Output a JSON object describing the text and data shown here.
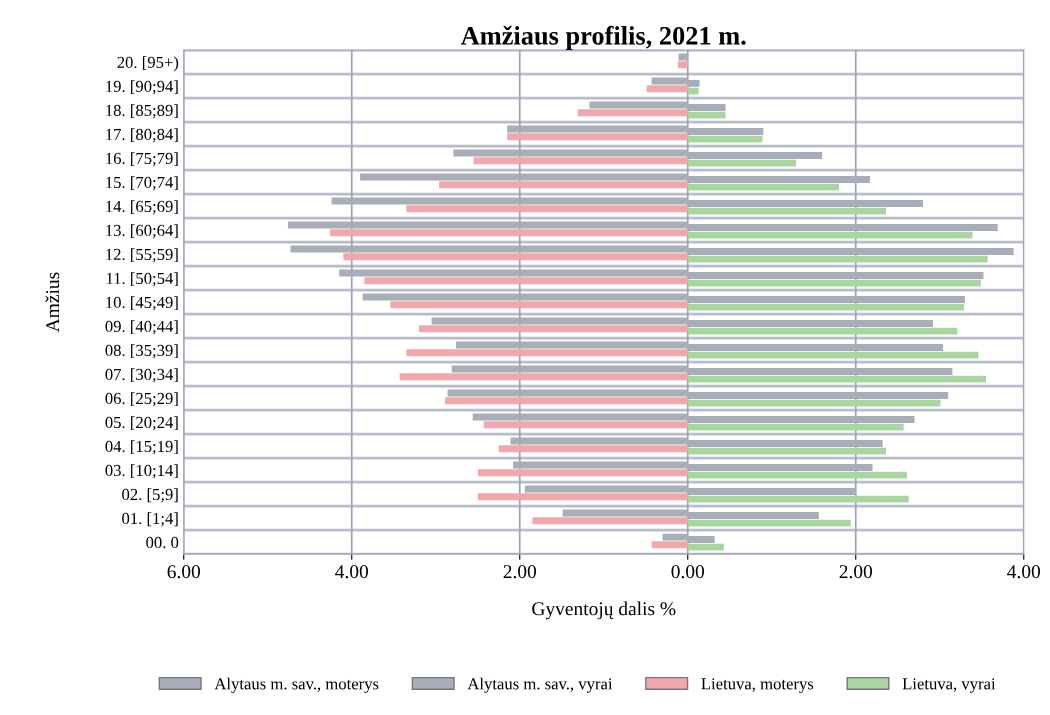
{
  "chart_data": {
    "type": "bar",
    "orientation": "horizontal",
    "title": "Amžiaus profilis, 2021 m.",
    "xlabel": "Gyventojų dalis %",
    "ylabel": "Amžius",
    "categories": [
      "20. [95+)",
      "19. [90;94]",
      "18. [85;89]",
      "17. [80;84]",
      "16. [75;79]",
      "15. [70;74]",
      "14. [65;69]",
      "13. [60;64]",
      "12. [55;59]",
      "11. [50;54]",
      "10. [45;49]",
      "09. [40;44]",
      "08. [35;39]",
      "07. [30;34]",
      "06. [25;29]",
      "05. [20;24]",
      "04. [15;19]",
      "03. [10;14]",
      "02. [5;9]",
      "01. [1;4]",
      "00. 0"
    ],
    "series": [
      {
        "name": "Alytaus m. sav., moterys",
        "color": "#a9adb9",
        "values": [
          -0.11,
          -0.43,
          -1.17,
          -2.15,
          -2.79,
          -3.9,
          -4.24,
          -4.76,
          -4.73,
          -4.15,
          -3.87,
          -3.05,
          -2.76,
          -2.81,
          -2.86,
          -2.56,
          -2.11,
          -2.08,
          -1.94,
          -1.49,
          -0.3
        ]
      },
      {
        "name": "Alytaus m. sav., vyrai",
        "color": "#a9adb9",
        "values": [
          null,
          0.14,
          0.45,
          0.9,
          1.6,
          2.17,
          2.8,
          3.69,
          3.88,
          3.52,
          3.3,
          2.92,
          3.04,
          3.15,
          3.1,
          2.7,
          2.32,
          2.2,
          2.0,
          1.56,
          0.32
        ]
      },
      {
        "name": "Lietuva, moterys",
        "color": "#f2a7ac",
        "values": [
          -0.12,
          -0.49,
          -1.31,
          -2.15,
          -2.55,
          -2.96,
          -3.35,
          -4.26,
          -4.1,
          -3.85,
          -3.54,
          -3.2,
          -3.35,
          -3.43,
          -2.89,
          -2.43,
          -2.25,
          -2.5,
          -2.5,
          -1.85,
          -0.43
        ]
      },
      {
        "name": "Lietuva, vyrai",
        "color": "#a8d5a0",
        "values": [
          null,
          0.13,
          0.45,
          0.89,
          1.29,
          1.8,
          2.36,
          3.39,
          3.57,
          3.49,
          3.29,
          3.21,
          3.46,
          3.55,
          3.01,
          2.57,
          2.36,
          2.61,
          2.63,
          1.94,
          0.43
        ]
      }
    ],
    "xlim": [
      -6,
      4
    ],
    "xticks": [
      {
        "value": -6,
        "label": "6.00"
      },
      {
        "value": -4,
        "label": "4.00"
      },
      {
        "value": -2,
        "label": "2.00"
      },
      {
        "value": 0,
        "label": "0.00"
      },
      {
        "value": 2,
        "label": "2.00"
      },
      {
        "value": 4,
        "label": "4.00"
      }
    ],
    "grid": "x",
    "legend": "bottom"
  }
}
